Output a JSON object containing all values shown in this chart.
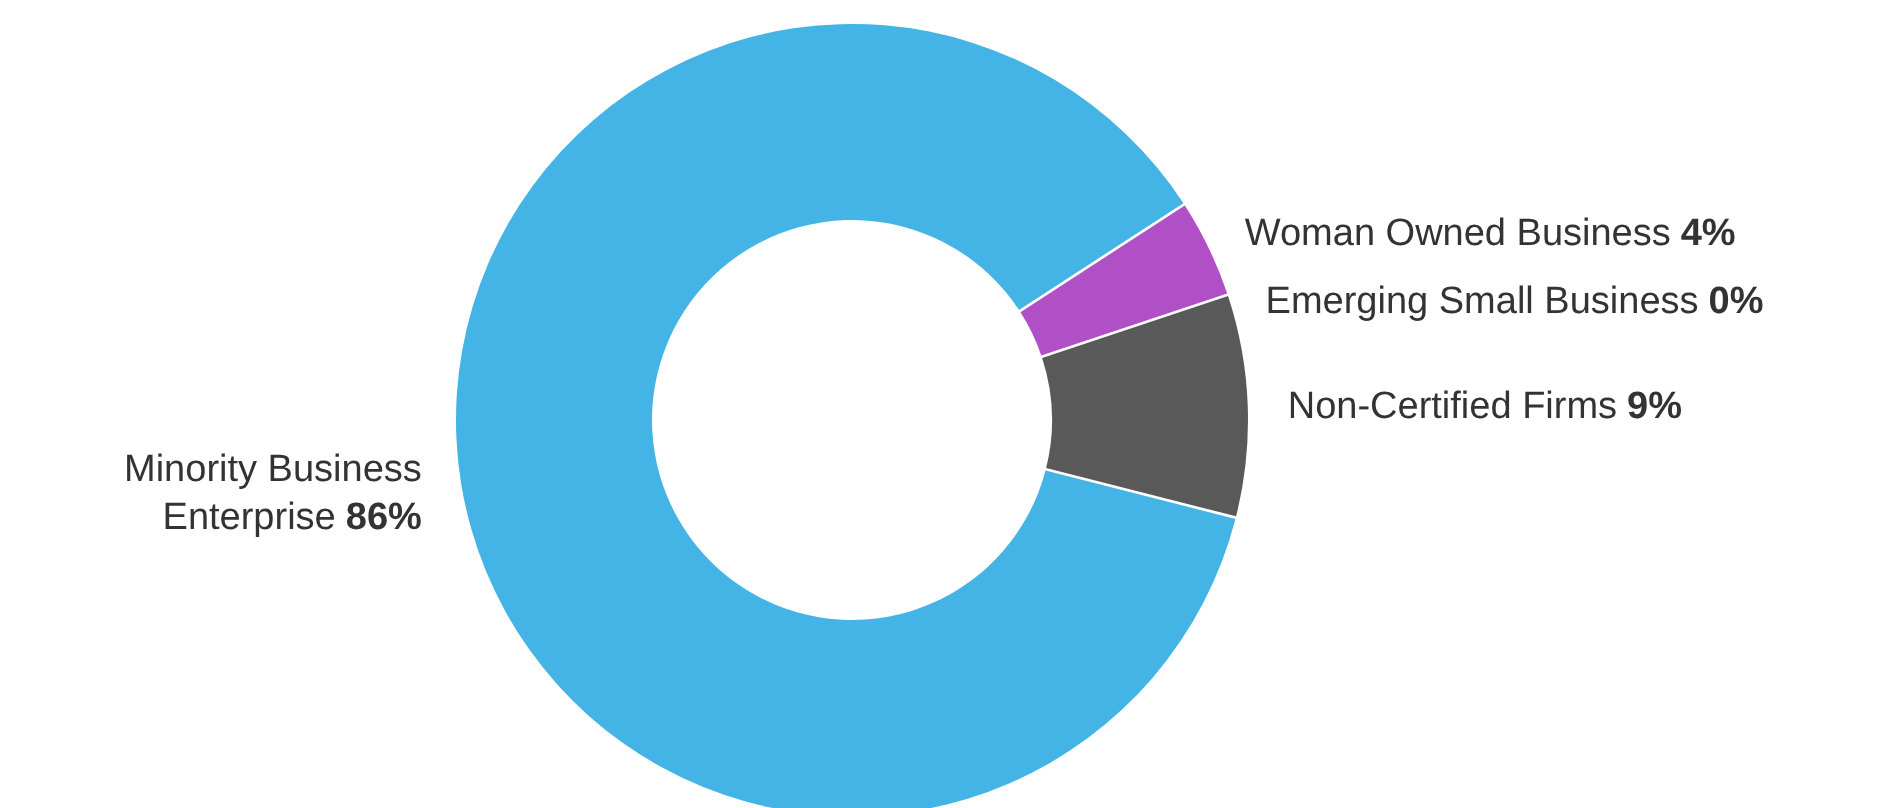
{
  "chart_data": {
    "type": "donut",
    "categories": [
      "Woman Owned Business",
      "Emerging Small Business",
      "Non-Certified Firms",
      "Minority Business Enterprise"
    ],
    "values": [
      4,
      0,
      9,
      86
    ],
    "colors": [
      "#b04fc6",
      "#333333",
      "#595959",
      "#43b4e5"
    ],
    "value_labels": [
      "4%",
      "0%",
      "9%",
      "86%"
    ]
  }
}
